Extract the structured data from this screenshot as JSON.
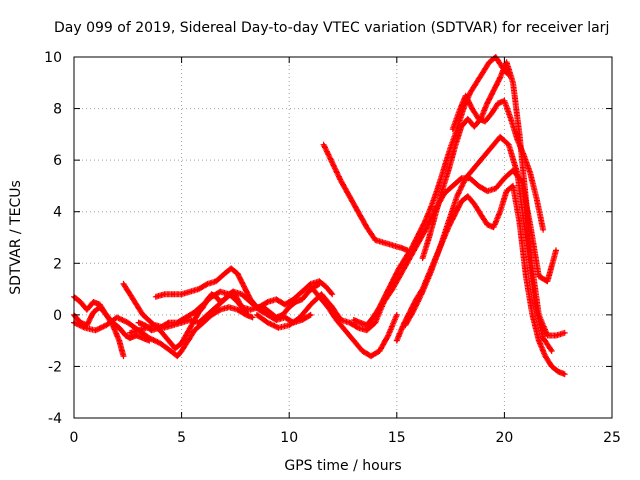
{
  "chart_data": {
    "type": "scatter",
    "title": "Day 099 of 2019, Sidereal Day-to-day VTEC variation (SDTVAR) for receiver larj",
    "xlabel": "GPS time / hours",
    "ylabel": "SDTVAR / TECUs",
    "xlim": [
      0,
      25
    ],
    "ylim": [
      -4,
      10
    ],
    "xticks": [
      0,
      5,
      10,
      15,
      20,
      25
    ],
    "yticks": [
      -4,
      -2,
      0,
      2,
      4,
      6,
      8,
      10
    ],
    "grid": true,
    "legend": "none",
    "marker": "plus",
    "color": "#ff0000",
    "series": [
      {
        "x": [
          0.0,
          0.3,
          0.6,
          0.9,
          1.2,
          1.5,
          1.8,
          2.1,
          2.4,
          2.6,
          2.9,
          3.2,
          3.5
        ],
        "y": [
          0.7,
          0.5,
          0.2,
          0.5,
          0.4,
          0.0,
          -0.3,
          -0.5,
          -0.8,
          -0.9,
          -0.8,
          -0.9,
          -1.0
        ]
      },
      {
        "x": [
          0.0,
          0.3,
          0.6,
          0.9,
          1.2,
          1.5,
          1.8,
          2.1,
          2.3
        ],
        "y": [
          0.0,
          -0.3,
          -0.4,
          0.1,
          0.3,
          0.0,
          -0.4,
          -1.0,
          -1.6
        ]
      },
      {
        "x": [
          2.3,
          2.6,
          2.9,
          3.2,
          3.6,
          4.0,
          4.4,
          4.7,
          5.0,
          5.2,
          5.4,
          5.6,
          5.8,
          6.0,
          6.2,
          6.4,
          6.6,
          6.8,
          7.0,
          7.2,
          7.4,
          7.6,
          7.8,
          8.0
        ],
        "y": [
          1.2,
          0.8,
          0.4,
          0.0,
          -0.3,
          -0.6,
          -1.0,
          -1.3,
          -1.1,
          -0.8,
          -0.5,
          -0.2,
          0.1,
          0.3,
          0.6,
          0.8,
          0.7,
          0.5,
          0.6,
          0.8,
          0.9,
          0.6,
          0.3,
          0.1
        ]
      },
      {
        "x": [
          0.0,
          0.5,
          1.0,
          1.5,
          2.0,
          2.5,
          3.0,
          3.5,
          4.0,
          4.5,
          4.8,
          5.0,
          5.3,
          5.6,
          6.0,
          6.4,
          6.8,
          7.2,
          7.6,
          8.0,
          8.3
        ],
        "y": [
          -0.3,
          -0.5,
          -0.6,
          -0.4,
          -0.1,
          -0.3,
          -0.6,
          -0.9,
          -1.1,
          -1.4,
          -1.6,
          -1.4,
          -1.0,
          -0.6,
          -0.3,
          0.0,
          0.2,
          0.3,
          0.2,
          0.0,
          -0.1
        ]
      },
      {
        "x": [
          2.6,
          3.0,
          3.4,
          3.8,
          4.2,
          4.6,
          5.0,
          5.4,
          5.8,
          6.2,
          6.6,
          7.0,
          7.4,
          7.8,
          8.2,
          8.6,
          9.0,
          9.4,
          9.8,
          10.2,
          10.6,
          11.0
        ],
        "y": [
          -0.7,
          -0.6,
          -0.5,
          -0.4,
          -0.5,
          -0.4,
          -0.3,
          -0.2,
          -0.3,
          0.0,
          0.3,
          0.6,
          0.9,
          0.8,
          0.5,
          0.2,
          0.0,
          -0.2,
          -0.1,
          -0.3,
          -0.2,
          0.0
        ]
      },
      {
        "x": [
          3.0,
          3.3,
          3.6,
          4.0,
          4.4,
          4.8,
          5.2,
          5.6,
          6.0,
          6.4,
          6.8,
          7.2,
          7.5,
          7.8,
          8.2,
          8.6,
          9.0,
          9.4,
          9.8,
          10.2,
          10.6,
          11.0,
          11.4,
          11.7,
          12.0
        ],
        "y": [
          -0.3,
          -0.4,
          -0.6,
          -0.5,
          -0.3,
          -0.3,
          -0.1,
          0.1,
          0.4,
          0.7,
          0.9,
          0.8,
          0.6,
          0.3,
          0.2,
          0.3,
          0.5,
          0.6,
          0.4,
          0.6,
          0.9,
          1.2,
          1.3,
          1.1,
          0.8
        ]
      },
      {
        "x": [
          3.8,
          4.2,
          4.6,
          5.0,
          5.4,
          5.8,
          6.2,
          6.6,
          7.0,
          7.3,
          7.6,
          7.9,
          8.2,
          8.5,
          8.8,
          9.1,
          9.4,
          9.7,
          10.0,
          10.3,
          10.6,
          10.9,
          11.2,
          11.4
        ],
        "y": [
          0.7,
          0.8,
          0.8,
          0.8,
          0.9,
          1.0,
          1.2,
          1.3,
          1.6,
          1.8,
          1.6,
          1.1,
          0.6,
          0.3,
          0.3,
          0.1,
          -0.1,
          0.0,
          0.3,
          0.5,
          0.6,
          0.9,
          1.1,
          1.2
        ]
      },
      {
        "x": [
          8.5,
          9.0,
          9.5,
          10.0,
          10.5,
          11.0,
          11.5,
          12.0,
          12.4,
          12.8,
          13.2,
          13.6,
          14.0,
          14.4,
          14.8,
          15.2,
          15.6,
          16.0,
          16.4,
          16.8,
          17.2,
          17.6,
          18.0,
          18.4,
          18.8,
          19.2,
          19.6,
          20.0,
          20.4,
          20.8,
          21.2,
          21.6,
          22.0,
          22.4
        ],
        "y": [
          0.0,
          -0.3,
          -0.5,
          -0.4,
          -0.1,
          0.4,
          0.8,
          0.3,
          -0.2,
          -0.3,
          -0.5,
          -0.6,
          -0.3,
          0.5,
          1.0,
          1.6,
          2.2,
          2.8,
          3.4,
          4.1,
          4.7,
          5.0,
          5.3,
          5.3,
          5.0,
          4.8,
          4.9,
          5.3,
          5.6,
          5.2,
          3.5,
          1.5,
          1.3,
          2.5
        ]
      },
      {
        "x": [
          11.0,
          11.4,
          11.8,
          12.2,
          12.6,
          13.0,
          13.4,
          13.8,
          14.2,
          14.6,
          15.0
        ],
        "y": [
          1.1,
          0.7,
          0.3,
          -0.2,
          -0.6,
          -1.0,
          -1.4,
          -1.6,
          -1.4,
          -0.8,
          0.0
        ]
      },
      {
        "x": [
          11.6,
          12.0,
          12.4,
          12.8,
          13.2,
          13.6,
          14.0,
          14.4,
          14.8,
          15.2,
          15.5
        ],
        "y": [
          6.6,
          5.9,
          5.2,
          4.6,
          4.0,
          3.4,
          2.9,
          2.8,
          2.7,
          2.6,
          2.5
        ]
      },
      {
        "x": [
          13.0,
          13.3,
          13.6,
          13.9,
          14.2,
          14.5,
          14.8,
          15.1,
          15.4,
          15.7,
          16.0,
          16.3,
          16.6,
          16.9,
          17.2,
          17.5,
          17.8,
          18.1,
          18.4,
          18.7,
          19.0,
          19.3,
          19.6,
          19.9,
          20.2
        ],
        "y": [
          -0.2,
          -0.3,
          -0.4,
          -0.1,
          0.3,
          0.8,
          1.3,
          1.8,
          2.2,
          2.6,
          3.1,
          3.6,
          4.2,
          4.9,
          5.7,
          6.5,
          7.2,
          8.0,
          8.6,
          9.0,
          9.4,
          9.8,
          10.0,
          9.6,
          9.3
        ]
      },
      {
        "x": [
          15.0,
          15.3,
          15.6,
          15.9,
          16.2,
          16.5,
          16.8,
          17.1,
          17.4,
          17.7,
          18.0,
          18.3,
          18.6,
          18.9,
          19.2,
          19.5,
          19.8,
          20.1,
          20.4,
          20.7,
          21.0,
          21.3,
          21.6,
          21.9,
          22.2,
          22.5,
          22.8
        ],
        "y": [
          -1.0,
          -0.4,
          0.1,
          0.6,
          1.0,
          1.6,
          2.2,
          2.8,
          3.4,
          3.9,
          4.4,
          4.6,
          4.3,
          3.9,
          3.5,
          3.4,
          4.0,
          4.8,
          5.0,
          3.6,
          1.5,
          0.0,
          -1.0,
          -1.6,
          -2.0,
          -2.2,
          -2.3
        ]
      },
      {
        "x": [
          15.4,
          15.8,
          16.2,
          16.6,
          17.0,
          17.4,
          17.8,
          18.2,
          18.6,
          19.0,
          19.4,
          19.8,
          20.2,
          20.6,
          21.0,
          21.4,
          21.8,
          22.2
        ],
        "y": [
          -0.4,
          0.2,
          0.9,
          1.7,
          2.6,
          3.6,
          4.6,
          5.3,
          5.7,
          6.1,
          6.5,
          6.9,
          6.6,
          5.5,
          3.0,
          0.5,
          -0.9,
          -1.4
        ]
      },
      {
        "x": [
          16.2,
          16.5,
          16.8,
          17.1,
          17.4,
          17.7,
          18.0,
          18.3,
          18.6,
          18.9,
          19.2,
          19.5,
          19.8,
          20.1,
          20.4,
          20.7,
          21.0,
          21.3,
          21.6,
          22.0,
          22.4,
          22.8
        ],
        "y": [
          2.2,
          3.0,
          3.9,
          4.8,
          5.6,
          6.5,
          7.3,
          7.6,
          7.3,
          7.6,
          8.2,
          8.7,
          9.2,
          9.8,
          9.0,
          7.0,
          4.5,
          1.8,
          0.0,
          -0.8,
          -0.8,
          -0.7
        ]
      },
      {
        "x": [
          17.6,
          17.9,
          18.2,
          18.5,
          18.8,
          19.1,
          19.4,
          19.7,
          20.0,
          20.3,
          20.6,
          20.9,
          21.2,
          21.5,
          21.8
        ],
        "y": [
          7.2,
          7.9,
          8.5,
          8.0,
          7.6,
          7.5,
          7.8,
          8.2,
          8.3,
          7.6,
          6.8,
          6.2,
          5.5,
          4.5,
          3.3
        ]
      }
    ]
  }
}
